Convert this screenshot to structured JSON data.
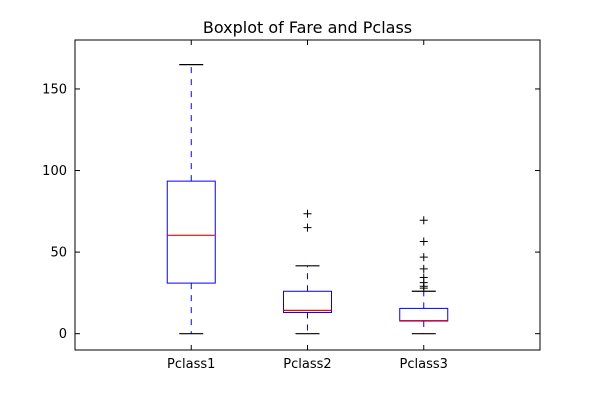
{
  "chart_data": {
    "type": "boxplot",
    "title": "Boxplot of Fare and Pclass",
    "xlabel": "",
    "ylabel": "",
    "categories": [
      "Pclass1",
      "Pclass2",
      "Pclass3"
    ],
    "ylim": [
      -10,
      180
    ],
    "yticks": [
      0,
      50,
      100,
      150
    ],
    "grid": false,
    "boxes": [
      {
        "category": "Pclass1",
        "whisker_low": 0,
        "q1": 31,
        "median": 60.3,
        "q3": 93.5,
        "whisker_high": 164.9,
        "outliers": []
      },
      {
        "category": "Pclass2",
        "whisker_low": 0,
        "q1": 13,
        "median": 14.3,
        "q3": 26,
        "whisker_high": 41.6,
        "outliers": [
          65,
          73.5
        ]
      },
      {
        "category": "Pclass3",
        "whisker_low": 0,
        "q1": 7.75,
        "median": 8.05,
        "q3": 15.5,
        "whisker_high": 26,
        "outliers": [
          27.9,
          29.1,
          31.3,
          34.4,
          39.7,
          46.9,
          56.5,
          69.55
        ]
      }
    ],
    "colors": {
      "box": "#0000ff",
      "median": "#ff0000",
      "whisker": "#0000ff",
      "cap": "#000000",
      "flier": "#000000",
      "axes": "#000000"
    }
  }
}
